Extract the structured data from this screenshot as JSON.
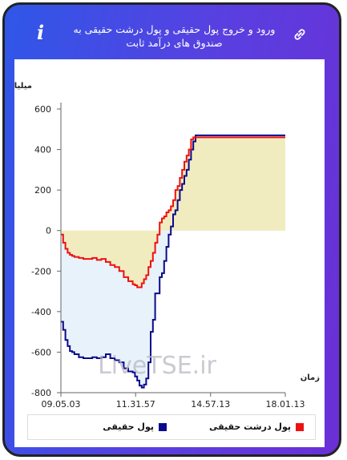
{
  "header": {
    "title": "ورود و خروج پول حقیقی و پول درشت حقیقی به صندوق های درآمد ثابت",
    "info_glyph": "i"
  },
  "chart_data": {
    "type": "line",
    "ylabel": "میلیارد تومان",
    "xlabel": "زمان",
    "ylim": [
      -800,
      600
    ],
    "yticks": [
      600,
      400,
      200,
      0,
      -200,
      -400,
      -600,
      -800
    ],
    "ytick_labels": [
      "600",
      "400",
      "200",
      "0",
      "-200",
      "-400",
      "-600",
      "-800"
    ],
    "xlim": [
      0,
      100
    ],
    "xticks": [
      0,
      33.3,
      66.7,
      100
    ],
    "xtick_labels": [
      "09.05.03",
      "11.31.57",
      "14.57.13",
      "18.01.13"
    ],
    "grid": false,
    "legend_position": "bottom",
    "watermark": "LiveTSE.ir",
    "series": [
      {
        "name": "پول حقیقی",
        "color": "#0a0a8a",
        "fill": "#e8f2fa",
        "x": [
          0,
          1,
          2,
          3,
          4,
          5,
          6,
          8,
          10,
          12,
          14,
          16,
          18,
          20,
          22,
          24,
          26,
          28,
          30,
          32,
          33,
          34,
          35,
          36,
          37,
          38,
          39,
          40,
          41,
          42,
          43,
          44,
          45,
          46,
          47,
          48,
          49,
          50,
          51,
          52,
          53,
          54,
          55,
          56,
          57,
          58,
          59,
          60,
          61,
          62,
          63,
          64,
          65,
          66,
          67,
          68,
          69,
          70,
          71,
          72,
          100
        ],
        "y": [
          -450,
          -490,
          -540,
          -570,
          -595,
          -600,
          -610,
          -625,
          -630,
          -630,
          -625,
          -630,
          -625,
          -610,
          -630,
          -640,
          -650,
          -680,
          -695,
          -700,
          -720,
          -740,
          -765,
          -775,
          -760,
          -730,
          -650,
          -500,
          -440,
          -310,
          -310,
          -230,
          -210,
          -150,
          -80,
          -20,
          20,
          80,
          100,
          150,
          200,
          230,
          270,
          300,
          350,
          400,
          440,
          470,
          470,
          470,
          470,
          470,
          470,
          470,
          470,
          470,
          470,
          470,
          470,
          470,
          470
        ]
      },
      {
        "name": "پول درشت حقیقی",
        "color": "#ee1111",
        "fill": "#f1ecbf",
        "x": [
          0,
          1,
          2,
          3,
          4,
          5,
          6,
          8,
          10,
          12,
          14,
          16,
          18,
          20,
          22,
          24,
          26,
          28,
          30,
          32,
          33,
          34,
          35,
          36,
          37,
          38,
          39,
          40,
          41,
          42,
          43,
          44,
          45,
          46,
          47,
          48,
          49,
          50,
          51,
          52,
          53,
          54,
          55,
          56,
          57,
          58,
          59,
          60,
          61,
          62,
          63,
          64,
          65,
          66,
          67,
          68,
          69,
          70,
          71,
          72,
          100
        ],
        "y": [
          -20,
          -60,
          -90,
          -110,
          -120,
          -125,
          -130,
          -135,
          -140,
          -140,
          -135,
          -145,
          -140,
          -155,
          -170,
          -180,
          -200,
          -230,
          -250,
          -265,
          -270,
          -280,
          -280,
          -260,
          -240,
          -220,
          -180,
          -150,
          -110,
          -60,
          -20,
          40,
          60,
          70,
          90,
          100,
          120,
          150,
          200,
          220,
          260,
          300,
          340,
          370,
          400,
          450,
          460,
          460,
          460,
          460,
          460,
          460,
          460,
          460,
          460,
          460,
          460,
          460,
          460,
          460,
          460
        ]
      }
    ]
  }
}
